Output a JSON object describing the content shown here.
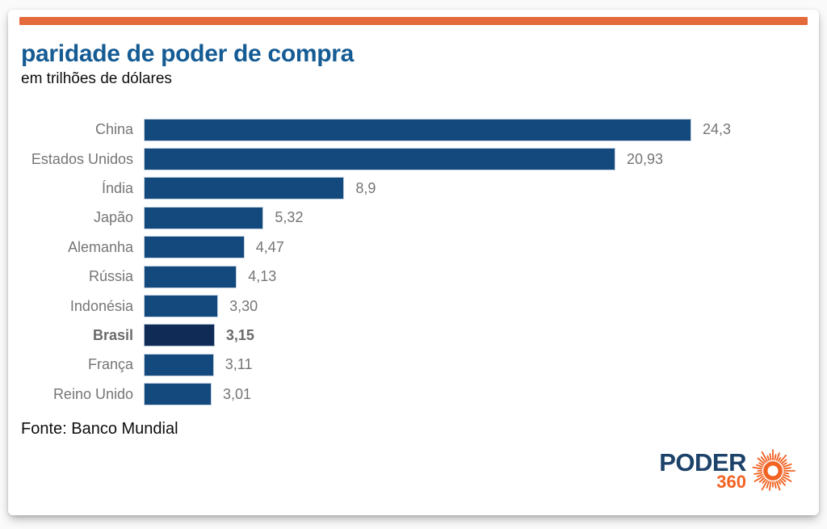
{
  "page": {
    "background": "#fafafa"
  },
  "card": {
    "accent_color": "#E4693B",
    "background": "#ffffff"
  },
  "header": {
    "title": "paridade de poder de compra",
    "subtitle": "em trilhões de dólares",
    "title_color": "#155B94"
  },
  "chart_data": {
    "type": "bar",
    "orientation": "horizontal",
    "title": "paridade de poder de compra",
    "unit": "trilhões de dólares",
    "categories": [
      "China",
      "Estados Unidos",
      "Índia",
      "Japão",
      "Alemanha",
      "Rússia",
      "Indonésia",
      "Brasil",
      "França",
      "Reino Unido"
    ],
    "values": [
      24.3,
      20.93,
      8.9,
      5.32,
      4.47,
      4.13,
      3.3,
      3.15,
      3.11,
      3.01
    ],
    "value_labels": [
      "24,3",
      "20,93",
      "8,9",
      "5,32",
      "4,47",
      "4,13",
      "3,30",
      "3,15",
      "3,11",
      "3,01"
    ],
    "highlighted_category": "Brasil",
    "bar_color": "#13497C",
    "highlight_bar_color": "#0F2B56",
    "label_color": "#757575",
    "xlim": [
      0,
      24.3
    ],
    "grid": false,
    "legend": false
  },
  "footer": {
    "source": "Fonte: Banco Mundial"
  },
  "logo": {
    "text": "PODER",
    "number": "360",
    "text_color": "#1D4269",
    "number_color": "#F26222",
    "icon": "sunburst-icon"
  }
}
